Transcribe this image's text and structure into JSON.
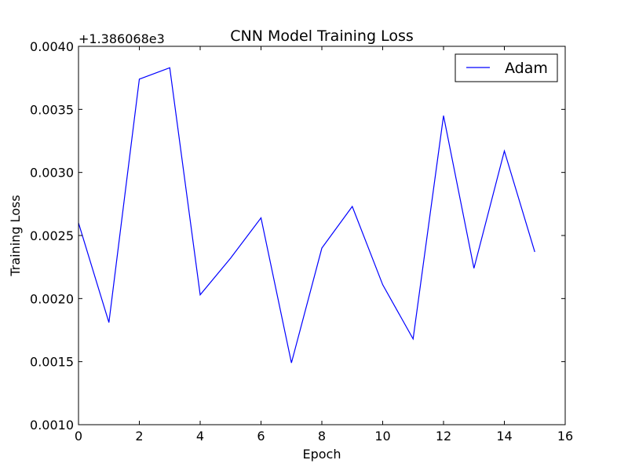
{
  "chart_data": {
    "type": "line",
    "title": "CNN Model Training Loss",
    "xlabel": "Epoch",
    "ylabel": "Training Loss",
    "offset_text": "+1.386068e3",
    "xlim": [
      0,
      16
    ],
    "ylim": [
      0.001,
      0.004
    ],
    "xticks": [
      "0",
      "2",
      "4",
      "6",
      "8",
      "10",
      "12",
      "14",
      "16"
    ],
    "yticks": [
      "0.0010",
      "0.0015",
      "0.0020",
      "0.0025",
      "0.0030",
      "0.0035",
      "0.0040"
    ],
    "grid": false,
    "legend_position": "top-right",
    "series": [
      {
        "name": "Adam",
        "color": "#0000ff",
        "x": [
          0,
          1,
          2,
          3,
          4,
          5,
          6,
          7,
          8,
          9,
          10,
          11,
          12,
          13,
          14,
          15
        ],
        "y": [
          0.0026,
          0.00181,
          0.00374,
          0.00383,
          0.00203,
          0.00232,
          0.00264,
          0.00149,
          0.0024,
          0.00273,
          0.00211,
          0.00168,
          0.00345,
          0.00224,
          0.00317,
          0.00237
        ]
      }
    ]
  }
}
